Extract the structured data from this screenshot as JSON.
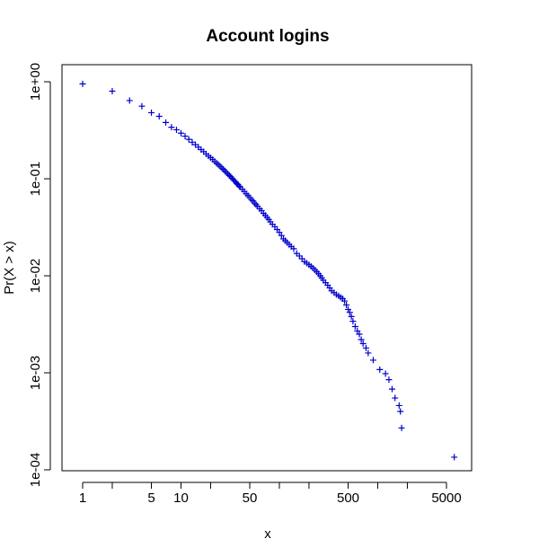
{
  "chart_data": {
    "type": "scatter",
    "title": "Account logins",
    "xlabel": "x",
    "ylabel": "Pr(X > x)",
    "x_scale": "log",
    "y_scale": "log",
    "xlim": [
      0.75,
      8000
    ],
    "ylim": [
      0.0001,
      1
    ],
    "x_ticks": [
      1,
      2,
      5,
      10,
      20,
      50,
      100,
      200,
      500,
      1000,
      2000,
      5000
    ],
    "x_tick_labels": [
      "1",
      "",
      "5",
      "10",
      "",
      "50",
      "",
      "",
      "500",
      "",
      "",
      "5000"
    ],
    "y_ticks": [
      1,
      0.1,
      0.01,
      0.001,
      0.0001
    ],
    "y_tick_labels": [
      "1e+00",
      "1e-01",
      "1e-02",
      "1e-03",
      "1e-04"
    ],
    "marker": "+",
    "marker_color": "#0000cc",
    "grid": false,
    "legend": "none",
    "points": [
      [
        1,
        0.95
      ],
      [
        2,
        0.8
      ],
      [
        3,
        0.64
      ],
      [
        4,
        0.56
      ],
      [
        5,
        0.48
      ],
      [
        6,
        0.44
      ],
      [
        7,
        0.38
      ],
      [
        8,
        0.34
      ],
      [
        9,
        0.32
      ],
      [
        10,
        0.295
      ],
      [
        11,
        0.275
      ],
      [
        12,
        0.255
      ],
      [
        13,
        0.238
      ],
      [
        14,
        0.225
      ],
      [
        15,
        0.212
      ],
      [
        16,
        0.2
      ],
      [
        17,
        0.19
      ],
      [
        18,
        0.18
      ],
      [
        19,
        0.172
      ],
      [
        20,
        0.165
      ],
      [
        21,
        0.158
      ],
      [
        22,
        0.151
      ],
      [
        23,
        0.145
      ],
      [
        24,
        0.14
      ],
      [
        25,
        0.134
      ],
      [
        26,
        0.129
      ],
      [
        27,
        0.125
      ],
      [
        28,
        0.12
      ],
      [
        29,
        0.116
      ],
      [
        30,
        0.112
      ],
      [
        31,
        0.108
      ],
      [
        32,
        0.105
      ],
      [
        33,
        0.101
      ],
      [
        34,
        0.098
      ],
      [
        35,
        0.095
      ],
      [
        36,
        0.092
      ],
      [
        37,
        0.089
      ],
      [
        38,
        0.087
      ],
      [
        39,
        0.084
      ],
      [
        40,
        0.082
      ],
      [
        42,
        0.078
      ],
      [
        44,
        0.074
      ],
      [
        46,
        0.07
      ],
      [
        48,
        0.067
      ],
      [
        50,
        0.064
      ],
      [
        52,
        0.061
      ],
      [
        54,
        0.059
      ],
      [
        56,
        0.056
      ],
      [
        58,
        0.054
      ],
      [
        60,
        0.052
      ],
      [
        63,
        0.049
      ],
      [
        66,
        0.047
      ],
      [
        69,
        0.044
      ],
      [
        72,
        0.042
      ],
      [
        75,
        0.04
      ],
      [
        78,
        0.038
      ],
      [
        81,
        0.036
      ],
      [
        85,
        0.034
      ],
      [
        90,
        0.032
      ],
      [
        95,
        0.03
      ],
      [
        100,
        0.028
      ],
      [
        105,
        0.026
      ],
      [
        110,
        0.024
      ],
      [
        115,
        0.023
      ],
      [
        120,
        0.022
      ],
      [
        126,
        0.021
      ],
      [
        132,
        0.02
      ],
      [
        140,
        0.019
      ],
      [
        150,
        0.017
      ],
      [
        160,
        0.016
      ],
      [
        170,
        0.015
      ],
      [
        180,
        0.014
      ],
      [
        190,
        0.0135
      ],
      [
        200,
        0.013
      ],
      [
        210,
        0.0125
      ],
      [
        220,
        0.012
      ],
      [
        230,
        0.0115
      ],
      [
        240,
        0.011
      ],
      [
        250,
        0.0105
      ],
      [
        260,
        0.01
      ],
      [
        270,
        0.0095
      ],
      [
        280,
        0.009
      ],
      [
        295,
        0.0085
      ],
      [
        310,
        0.008
      ],
      [
        325,
        0.0075
      ],
      [
        340,
        0.007
      ],
      [
        360,
        0.0067
      ],
      [
        380,
        0.0064
      ],
      [
        400,
        0.0062
      ],
      [
        420,
        0.006
      ],
      [
        440,
        0.0058
      ],
      [
        460,
        0.0055
      ],
      [
        480,
        0.005
      ],
      [
        500,
        0.0045
      ],
      [
        520,
        0.0042
      ],
      [
        540,
        0.0038
      ],
      [
        560,
        0.0034
      ],
      [
        590,
        0.003
      ],
      [
        620,
        0.0027
      ],
      [
        650,
        0.0025
      ],
      [
        680,
        0.0022
      ],
      [
        710,
        0.002
      ],
      [
        760,
        0.0018
      ],
      [
        800,
        0.0016
      ],
      [
        900,
        0.00135
      ],
      [
        1050,
        0.00108
      ],
      [
        1200,
        0.00098
      ],
      [
        1300,
        0.00085
      ],
      [
        1400,
        0.00068
      ],
      [
        1500,
        0.00055
      ],
      [
        1650,
        0.00046
      ],
      [
        1700,
        0.0004
      ],
      [
        1750,
        0.00027
      ],
      [
        6000,
        0.000135
      ]
    ]
  }
}
